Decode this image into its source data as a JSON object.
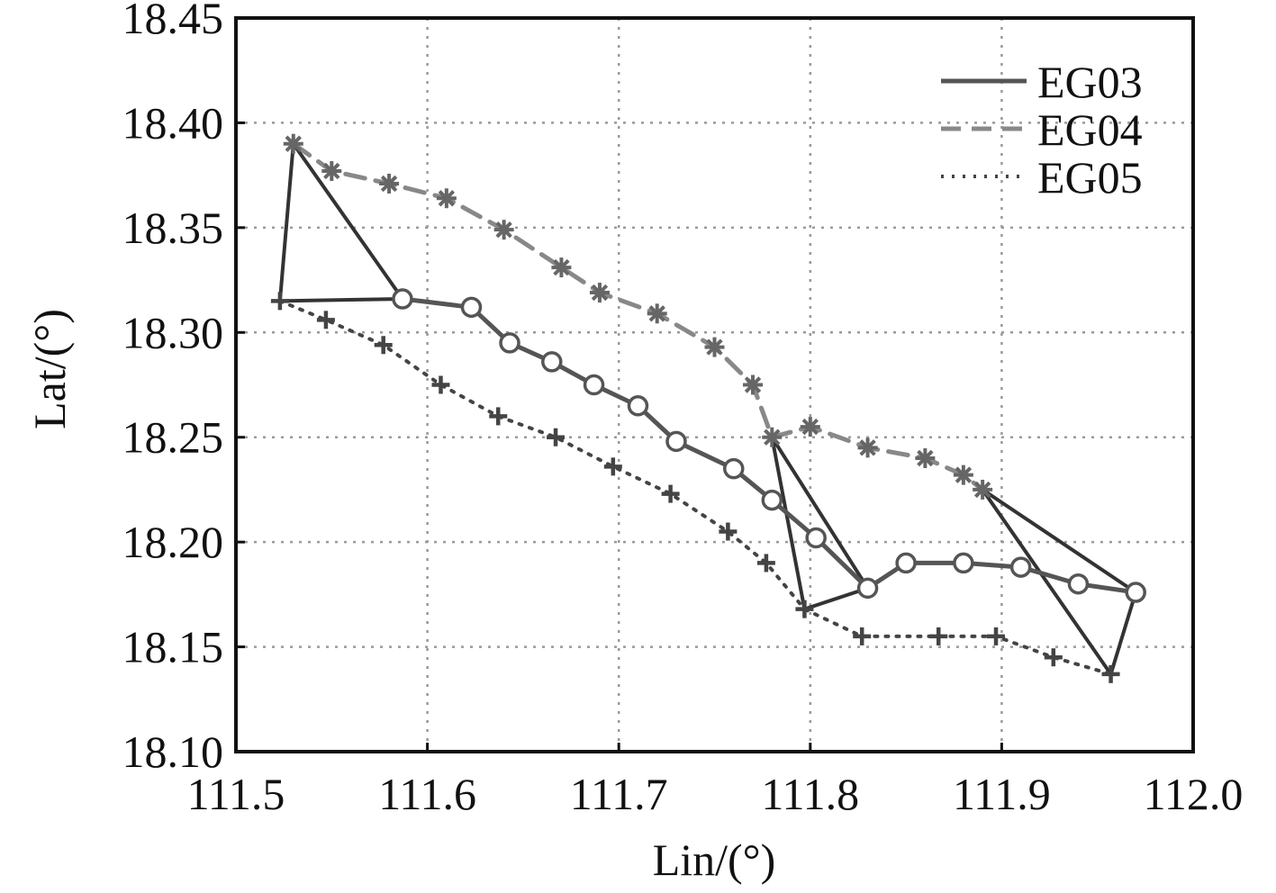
{
  "chart_data": {
    "type": "line",
    "xlabel": "Lin/(°)",
    "ylabel": "Lat/(°)",
    "xlim": [
      111.5,
      112.0
    ],
    "ylim": [
      18.1,
      18.45
    ],
    "x_ticks": [
      "111.5",
      "111.6",
      "111.7",
      "111.8",
      "111.9",
      "112.0"
    ],
    "y_ticks": [
      "18.10",
      "18.15",
      "18.20",
      "18.25",
      "18.30",
      "18.35",
      "18.40",
      "18.45"
    ],
    "grid": true,
    "legend_position": "top-right",
    "series": [
      {
        "name": "EG03",
        "line_style": "solid",
        "marker": "circle",
        "color": "#555555",
        "points": [
          [
            111.587,
            18.316
          ],
          [
            111.623,
            18.312
          ],
          [
            111.643,
            18.295
          ],
          [
            111.665,
            18.286
          ],
          [
            111.687,
            18.275
          ],
          [
            111.71,
            18.265
          ],
          [
            111.73,
            18.248
          ],
          [
            111.76,
            18.235
          ],
          [
            111.78,
            18.22
          ],
          [
            111.803,
            18.202
          ],
          [
            111.83,
            18.178
          ],
          [
            111.85,
            18.19
          ],
          [
            111.88,
            18.19
          ],
          [
            111.91,
            18.188
          ],
          [
            111.94,
            18.18
          ],
          [
            111.97,
            18.176
          ]
        ]
      },
      {
        "name": "EG04",
        "line_style": "dashed",
        "marker": "asterisk",
        "color": "#888888",
        "points": [
          [
            111.53,
            18.39
          ],
          [
            111.55,
            18.377
          ],
          [
            111.58,
            18.371
          ],
          [
            111.61,
            18.364
          ],
          [
            111.64,
            18.349
          ],
          [
            111.67,
            18.331
          ],
          [
            111.69,
            18.319
          ],
          [
            111.72,
            18.309
          ],
          [
            111.75,
            18.293
          ],
          [
            111.77,
            18.275
          ],
          [
            111.78,
            18.25
          ],
          [
            111.8,
            18.255
          ],
          [
            111.83,
            18.245
          ],
          [
            111.86,
            18.24
          ],
          [
            111.88,
            18.232
          ],
          [
            111.89,
            18.225
          ]
        ]
      },
      {
        "name": "EG05",
        "line_style": "dotted",
        "marker": "plus",
        "color": "#444444",
        "points": [
          [
            111.523,
            18.315
          ],
          [
            111.547,
            18.306
          ],
          [
            111.577,
            18.294
          ],
          [
            111.607,
            18.275
          ],
          [
            111.637,
            18.26
          ],
          [
            111.667,
            18.25
          ],
          [
            111.697,
            18.236
          ],
          [
            111.727,
            18.223
          ],
          [
            111.757,
            18.205
          ],
          [
            111.777,
            18.19
          ],
          [
            111.797,
            18.168
          ],
          [
            111.827,
            18.155
          ],
          [
            111.867,
            18.155
          ],
          [
            111.897,
            18.155
          ],
          [
            111.927,
            18.145
          ],
          [
            111.957,
            18.137
          ]
        ]
      }
    ],
    "triangles": [
      {
        "color": "#333333",
        "points": [
          [
            111.53,
            18.39
          ],
          [
            111.587,
            18.316
          ],
          [
            111.523,
            18.315
          ]
        ]
      },
      {
        "color": "#333333",
        "points": [
          [
            111.78,
            18.25
          ],
          [
            111.83,
            18.178
          ],
          [
            111.797,
            18.168
          ]
        ]
      },
      {
        "color": "#333333",
        "points": [
          [
            111.89,
            18.225
          ],
          [
            111.97,
            18.176
          ],
          [
            111.957,
            18.137
          ]
        ]
      }
    ]
  }
}
